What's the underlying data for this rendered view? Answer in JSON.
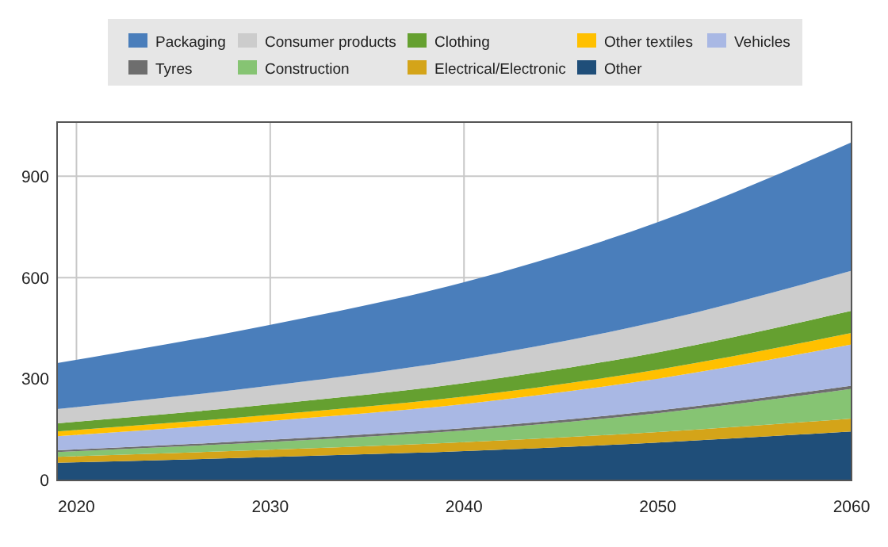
{
  "chart_data": {
    "type": "area",
    "stacked": true,
    "x": [
      2019,
      2030,
      2040,
      2050,
      2060
    ],
    "xlim": [
      2019,
      2060
    ],
    "xticks": [
      2020,
      2030,
      2040,
      2050,
      2060
    ],
    "ylim": [
      0,
      1060
    ],
    "yticks": [
      0,
      300,
      600,
      900
    ],
    "grid": true,
    "legend": "top",
    "series": [
      {
        "name": "Other",
        "color": "#1f4e79",
        "values": [
          52,
          69,
          87,
          112,
          145
        ]
      },
      {
        "name": "Electrical/Electronic",
        "color": "#d4a419",
        "values": [
          18,
          22,
          26,
          31,
          38
        ]
      },
      {
        "name": "Construction",
        "color": "#86c473",
        "values": [
          14,
          23,
          35,
          56,
          88
        ]
      },
      {
        "name": "Tyres",
        "color": "#6e6e6e",
        "values": [
          5,
          6,
          7,
          8,
          9
        ]
      },
      {
        "name": "Vehicles",
        "color": "#a9b8e4",
        "values": [
          42,
          56,
          71,
          94,
          122
        ]
      },
      {
        "name": "Other textiles",
        "color": "#ffc000",
        "values": [
          14,
          18,
          22,
          27,
          34
        ]
      },
      {
        "name": "Clothing",
        "color": "#65a030",
        "values": [
          24,
          31,
          40,
          51,
          66
        ]
      },
      {
        "name": "Consumer products",
        "color": "#cccccc",
        "values": [
          42,
          55,
          71,
          91,
          118
        ]
      },
      {
        "name": "Packaging",
        "color": "#4a7ebb",
        "values": [
          136,
          180,
          227,
          294,
          380
        ]
      }
    ]
  }
}
